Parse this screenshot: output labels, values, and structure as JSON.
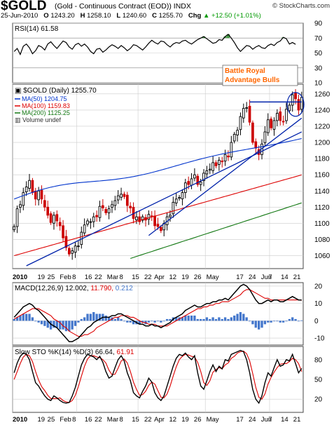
{
  "header": {
    "symbol": "$GOLD",
    "description": "(Gold - Continuous Contract (EOD)) INDX",
    "date": "25-Jun-2010",
    "open_label": "O",
    "open": "1243.20",
    "high_label": "H",
    "high": "1258.10",
    "low_label": "L",
    "low": "1240.60",
    "close_label": "C",
    "close": "1255.70",
    "change_label": "Chg",
    "change": "+12.50 (+1.01%)",
    "change_icon": "up-triangle-icon",
    "source": "© StockCharts.com"
  },
  "colors": {
    "price_up": "#000000",
    "price_down": "#cc0000",
    "ma50": "#0033cc",
    "ma100": "#dd0000",
    "ma200": "#117711",
    "trendline": "#0022aa",
    "annotation": "#ff6600",
    "macd": "#000000",
    "signal": "#dd0000",
    "histogram": "#4477cc",
    "grid": "#cccccc"
  },
  "chart_data": [
    {
      "type": "line",
      "panel": "rsi",
      "label": "RSI(14) 61.58",
      "ylim": [
        10,
        90
      ],
      "ticks": [
        10,
        30,
        50,
        70,
        90
      ],
      "overbought": 70,
      "oversold": 30,
      "values": [
        52,
        56,
        48,
        59,
        62,
        57,
        49,
        53,
        60,
        58,
        54,
        62,
        65,
        60,
        56,
        61,
        66,
        64,
        58,
        55,
        61,
        63,
        59,
        62,
        58,
        52,
        49,
        55,
        56,
        51,
        54,
        58,
        61,
        59,
        56,
        60,
        57,
        53,
        56,
        61,
        60,
        57,
        54,
        58,
        63,
        67,
        64,
        62,
        66,
        65,
        61,
        58,
        62,
        64,
        63,
        66,
        67,
        64,
        62,
        65,
        68,
        70,
        72,
        69,
        66,
        63,
        64,
        68,
        67,
        72,
        75,
        70,
        64,
        57,
        52,
        56,
        60,
        59,
        55,
        58,
        60,
        57,
        56,
        60,
        62,
        60,
        64,
        66,
        71,
        69,
        62,
        64,
        61.58
      ]
    },
    {
      "type": "candlestick",
      "panel": "price",
      "title": "$GOLD (Daily) 1255.70",
      "ylim": [
        1044,
        1272
      ],
      "yticks": [
        1060,
        1080,
        1100,
        1120,
        1140,
        1160,
        1180,
        1200,
        1220,
        1240,
        1260
      ],
      "xlabels": [
        "2010",
        "19",
        "25",
        "Feb",
        "8",
        "16",
        "22",
        "Mar",
        "8",
        "15",
        "22",
        "Apr",
        "12",
        "19",
        "26",
        "May",
        "17",
        "24",
        "Jun",
        "7",
        "14",
        "21"
      ],
      "close": [
        1096,
        1118,
        1123,
        1138,
        1145,
        1153,
        1138,
        1130,
        1140,
        1130,
        1120,
        1110,
        1101,
        1110,
        1103,
        1097,
        1082,
        1070,
        1062,
        1066,
        1072,
        1072,
        1089,
        1098,
        1103,
        1102,
        1108,
        1108,
        1121,
        1119,
        1113,
        1118,
        1123,
        1128,
        1134,
        1136,
        1133,
        1122,
        1119,
        1106,
        1108,
        1102,
        1108,
        1104,
        1111,
        1109,
        1097,
        1096,
        1091,
        1100,
        1108,
        1110,
        1126,
        1130,
        1132,
        1138,
        1150,
        1148,
        1155,
        1160,
        1148,
        1151,
        1162,
        1165,
        1167,
        1175,
        1171,
        1178,
        1176,
        1185,
        1182,
        1200,
        1210,
        1215,
        1232,
        1242,
        1243,
        1225,
        1200,
        1193,
        1185,
        1198,
        1213,
        1228,
        1218,
        1227,
        1236,
        1227,
        1226,
        1241,
        1246,
        1259,
        1254,
        1240,
        1255.7
      ],
      "ma": [
        {
          "name": "MA(50) 1204.75",
          "period": 50
        },
        {
          "name": "MA(100) 1159.83",
          "period": 100
        },
        {
          "name": "MA(200) 1125.25",
          "period": 200
        }
      ],
      "volume_label": "Volume undef",
      "trend_support": [
        1085,
        1230
      ],
      "resistance": 1250,
      "annotation": [
        "Battle Royal",
        "Advantage Bulls"
      ]
    },
    {
      "type": "line",
      "panel": "macd",
      "label": "MACD(12,26,9) 12.002, 11.790, 0.212",
      "ylim": [
        -14,
        22
      ],
      "ticks": [
        -10,
        0,
        10,
        20
      ],
      "series": [
        {
          "name": "12.002",
          "values": [
            2,
            4,
            6,
            8,
            9,
            10,
            9,
            7,
            6,
            4,
            2,
            0,
            -2,
            -3,
            -4,
            -6,
            -8,
            -10,
            -12,
            -12,
            -11,
            -10,
            -8,
            -6,
            -4,
            -3,
            -1,
            0,
            1,
            2,
            2,
            2,
            3,
            3,
            4,
            4,
            3,
            2,
            1,
            0,
            -1,
            -2,
            -2,
            -3,
            -3,
            -2,
            -3,
            -3,
            -4,
            -3,
            -2,
            -1,
            1,
            2,
            3,
            4,
            6,
            7,
            8,
            9,
            8,
            8,
            9,
            10,
            10,
            11,
            11,
            12,
            12,
            13,
            12,
            14,
            16,
            18,
            20,
            21,
            20,
            18,
            15,
            12,
            10,
            10,
            11,
            12,
            11,
            12,
            12,
            11,
            11,
            12,
            13,
            14,
            13,
            12,
            12.002
          ]
        },
        {
          "name": "11.790",
          "values": [
            1,
            2,
            3,
            4,
            5,
            6,
            7,
            7,
            7,
            6,
            5,
            4,
            3,
            1,
            0,
            -1,
            -3,
            -4,
            -6,
            -7,
            -8,
            -9,
            -9,
            -8,
            -8,
            -7,
            -6,
            -4,
            -3,
            -2,
            -1,
            0,
            1,
            2,
            2,
            3,
            3,
            3,
            2,
            2,
            1,
            0,
            -1,
            -1,
            -2,
            -2,
            -2,
            -3,
            -3,
            -3,
            -3,
            -2,
            -1,
            0,
            1,
            2,
            3,
            4,
            5,
            6,
            7,
            7,
            8,
            8,
            9,
            9,
            10,
            10,
            11,
            11,
            11,
            12,
            13,
            14,
            15,
            17,
            18,
            18,
            17,
            16,
            15,
            14,
            13,
            13,
            12,
            12,
            12,
            12,
            12,
            12,
            12,
            12,
            12,
            12,
            11.79
          ]
        },
        {
          "name": "0.212",
          "values": [
            1,
            2,
            3,
            4,
            4,
            4,
            2,
            0,
            -1,
            -2,
            -3,
            -4,
            -5,
            -4,
            -4,
            -5,
            -5,
            -6,
            -6,
            -5,
            -3,
            -1,
            1,
            2,
            4,
            4,
            5,
            4,
            4,
            4,
            3,
            2,
            2,
            1,
            2,
            1,
            0,
            -1,
            -1,
            -2,
            -2,
            -2,
            -1,
            -2,
            -1,
            0,
            -1,
            0,
            -1,
            0,
            1,
            1,
            2,
            2,
            2,
            2,
            3,
            3,
            3,
            3,
            1,
            1,
            1,
            2,
            1,
            2,
            1,
            2,
            1,
            2,
            1,
            2,
            3,
            4,
            5,
            4,
            2,
            0,
            -2,
            -4,
            -5,
            -4,
            -2,
            -1,
            -1,
            0,
            0,
            -1,
            -1,
            0,
            1,
            2,
            1,
            0,
            0.212
          ]
        }
      ]
    },
    {
      "type": "line",
      "panel": "stochastic",
      "label": "Slow STO %K(14) %D(3) 66.64, 61.91",
      "ylim": [
        0,
        100
      ],
      "ticks": [
        20,
        50,
        80
      ],
      "series": [
        {
          "name": "66.64",
          "values": [
            60,
            75,
            85,
            90,
            88,
            80,
            62,
            45,
            40,
            32,
            25,
            20,
            18,
            25,
            22,
            18,
            15,
            14,
            15,
            25,
            38,
            55,
            72,
            82,
            88,
            86,
            84,
            80,
            85,
            76,
            62,
            52,
            55,
            68,
            80,
            86,
            78,
            60,
            48,
            30,
            25,
            22,
            32,
            40,
            52,
            46,
            30,
            22,
            18,
            25,
            40,
            55,
            70,
            82,
            88,
            86,
            90,
            84,
            80,
            86,
            60,
            40,
            35,
            48,
            62,
            72,
            62,
            70,
            66,
            80,
            78,
            88,
            90,
            92,
            94,
            92,
            80,
            60,
            35,
            20,
            14,
            25,
            45,
            60,
            55,
            68,
            80,
            70,
            72,
            80,
            78,
            88,
            74,
            60,
            66.64
          ]
        },
        {
          "name": "61.91",
          "values": [
            50,
            62,
            74,
            84,
            88,
            86,
            77,
            62,
            49,
            39,
            33,
            26,
            21,
            21,
            21,
            22,
            18,
            16,
            15,
            18,
            26,
            39,
            55,
            70,
            81,
            86,
            86,
            84,
            83,
            80,
            75,
            64,
            57,
            58,
            67,
            78,
            81,
            75,
            62,
            46,
            35,
            26,
            27,
            32,
            41,
            46,
            43,
            33,
            23,
            22,
            28,
            40,
            55,
            69,
            80,
            85,
            88,
            87,
            85,
            84,
            76,
            62,
            45,
            41,
            48,
            61,
            65,
            68,
            66,
            72,
            75,
            82,
            85,
            90,
            92,
            93,
            89,
            78,
            59,
            38,
            23,
            20,
            28,
            43,
            53,
            61,
            68,
            73,
            74,
            74,
            77,
            82,
            80,
            74,
            61.91
          ]
        }
      ]
    }
  ]
}
